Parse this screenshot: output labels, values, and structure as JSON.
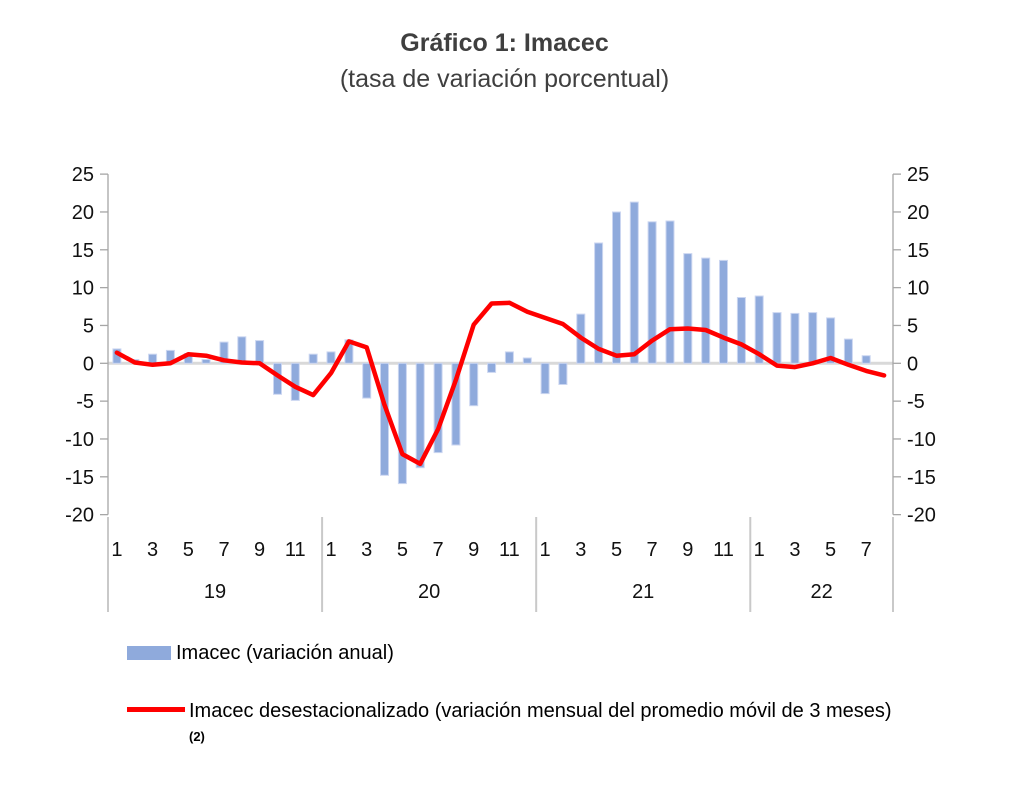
{
  "title": "Gráfico 1: Imacec",
  "subtitle": "(tasa de variación porcentual)",
  "legend": {
    "bars_label": "Imacec (variación anual)",
    "line_label": "Imacec desestacionalizado (variación mensual del promedio móvil de 3 meses)",
    "line_label_sup": "(2)"
  },
  "colors": {
    "bar": "#8FAADC",
    "bar_border": "#CBD6F1",
    "line": "#FF0000",
    "zero_line": "#D9D9D9",
    "axis": "#A6A6A6",
    "separator": "#C9C9C9",
    "label_text": "#111111"
  },
  "chart_data": {
    "type": "bar+line",
    "title": "Gráfico 1: Imacec",
    "subtitle": "(tasa de variación porcentual)",
    "ylim": [
      -20,
      25
    ],
    "y_ticks": [
      25,
      20,
      15,
      10,
      5,
      0,
      -5,
      -10,
      -15,
      -20
    ],
    "grid": "zero-line-only",
    "legend_position": "bottom-left",
    "x_years": [
      {
        "label": "19",
        "months": 12,
        "tick_labels": [
          "1",
          "3",
          "5",
          "7",
          "9",
          "11"
        ]
      },
      {
        "label": "20",
        "months": 12,
        "tick_labels": [
          "1",
          "3",
          "5",
          "7",
          "9",
          "11"
        ]
      },
      {
        "label": "21",
        "months": 12,
        "tick_labels": [
          "1",
          "3",
          "5",
          "7",
          "9",
          "11"
        ]
      },
      {
        "label": "22",
        "months": 8,
        "tick_labels": [
          "1",
          "3",
          "5",
          "7"
        ]
      }
    ],
    "series": [
      {
        "name": "Imacec (variación anual)",
        "type": "bar",
        "color": "#8FAADC",
        "values": [
          1.9,
          0.5,
          1.2,
          1.7,
          1.3,
          0.5,
          2.8,
          3.5,
          3.0,
          -4.1,
          -4.9,
          1.2,
          1.5,
          3.1,
          -4.6,
          -14.8,
          -15.9,
          -13.8,
          -11.8,
          -10.8,
          -5.6,
          -1.2,
          1.5,
          0.7,
          -4.0,
          -2.8,
          6.5,
          15.9,
          20.0,
          21.3,
          18.7,
          18.8,
          14.5,
          13.9,
          13.6,
          8.7,
          8.9,
          6.7,
          6.6,
          6.7,
          6.0,
          3.2,
          1.0,
          null
        ]
      },
      {
        "name": "Imacec desestacionalizado (variación mensual del promedio móvil de 3 meses)(2)",
        "type": "line",
        "color": "#FF0000",
        "values": [
          1.4,
          0.1,
          -0.2,
          0.0,
          1.2,
          1.0,
          0.4,
          0.1,
          0.0,
          -1.6,
          -3.1,
          -4.2,
          -1.3,
          2.9,
          2.1,
          -5.5,
          -12.0,
          -13.3,
          -8.7,
          -2.2,
          5.1,
          7.9,
          8.0,
          6.8,
          6.0,
          5.2,
          3.4,
          1.9,
          1.0,
          1.2,
          3.0,
          4.5,
          4.6,
          4.4,
          3.4,
          2.5,
          1.2,
          -0.3,
          -0.5,
          0.0,
          0.7,
          -0.2,
          -1.0,
          -1.6
        ]
      }
    ]
  }
}
